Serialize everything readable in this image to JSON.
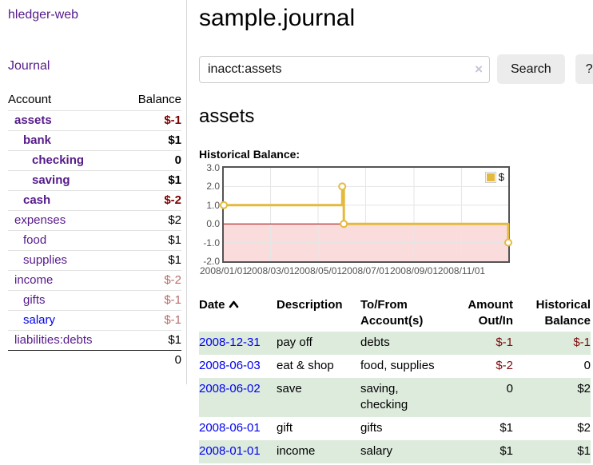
{
  "brand": "hledger-web",
  "nav": {
    "journal": "Journal"
  },
  "sidebar": {
    "columns": {
      "account": "Account",
      "balance": "Balance"
    },
    "accounts": [
      {
        "name": "assets",
        "balance": "$-1"
      },
      {
        "name": "bank",
        "balance": "$1"
      },
      {
        "name": "checking",
        "balance": "0"
      },
      {
        "name": "saving",
        "balance": "$1"
      },
      {
        "name": "cash",
        "balance": "$-2"
      },
      {
        "name": "expenses",
        "balance": "$2"
      },
      {
        "name": "food",
        "balance": "$1"
      },
      {
        "name": "supplies",
        "balance": "$1"
      },
      {
        "name": "income",
        "balance": "$-2"
      },
      {
        "name": "gifts",
        "balance": "$-1"
      },
      {
        "name": "salary",
        "balance": "$-1"
      },
      {
        "name": "liabilities:debts",
        "balance": "$1"
      }
    ],
    "total": "0"
  },
  "header": {
    "title": "sample.journal"
  },
  "search": {
    "value": "inacct:assets",
    "clear": "×",
    "button": "Search",
    "help": "?"
  },
  "page": {
    "account": "assets",
    "chart_title": "Historical Balance:"
  },
  "colors": {
    "link_purple": "#551a8b",
    "link_blue": "#0000ee",
    "negative_strong": "#7b0000",
    "negative_muted": "#bb6a6a",
    "row_stripe_green": "#dcebdc"
  },
  "chart_data": {
    "type": "line",
    "title": "Historical Balance",
    "step": true,
    "series": [
      {
        "name": "$",
        "points": [
          [
            "2008-01-01",
            1
          ],
          [
            "2008-06-01",
            2
          ],
          [
            "2008-06-03",
            0
          ],
          [
            "2008-12-31",
            -1
          ]
        ]
      }
    ],
    "xlim": [
      "2008-01-01",
      "2008-12-31"
    ],
    "ylim": [
      -2,
      3
    ],
    "y_ticks": [
      3,
      2,
      1,
      0,
      -1,
      -2
    ],
    "x_ticks": [
      "2008/01/01",
      "2008/03/01",
      "2008/05/01",
      "2008/07/01",
      "2008/09/01",
      "2008/11/01"
    ],
    "grid": true,
    "line_color": "#e4ba3e",
    "marker_fill": "#ffffff",
    "negative_region_color": "#fbdcdc",
    "zero_line_color": "#a40000",
    "grid_color": "#e6e6e6",
    "legend": {
      "label": "$",
      "position": "top-right"
    }
  },
  "register": {
    "columns": {
      "date": "Date",
      "description": "Description",
      "tofrom": "To/From Account(s)",
      "amount": "Amount Out/In",
      "balance": "Historical Balance"
    },
    "rows": [
      {
        "date": "2008-12-31",
        "description": "pay off",
        "accounts": "debts",
        "amount": "$-1",
        "balance": "$-1"
      },
      {
        "date": "2008-06-03",
        "description": "eat & shop",
        "accounts": "food, supplies",
        "amount": "$-2",
        "balance": "0"
      },
      {
        "date": "2008-06-02",
        "description": "save",
        "accounts": "saving, checking",
        "amount": "0",
        "balance": "$2"
      },
      {
        "date": "2008-06-01",
        "description": "gift",
        "accounts": "gifts",
        "amount": "$1",
        "balance": "$2"
      },
      {
        "date": "2008-01-01",
        "description": "income",
        "accounts": "salary",
        "amount": "$1",
        "balance": "$1"
      }
    ]
  }
}
